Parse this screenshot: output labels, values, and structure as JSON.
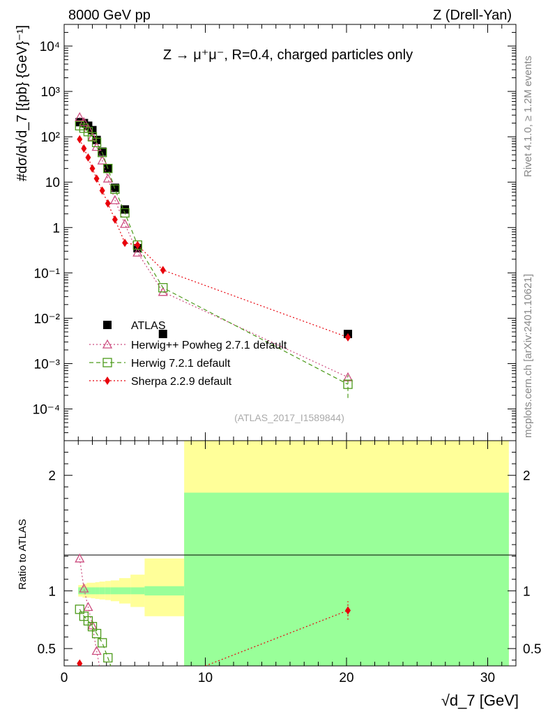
{
  "header": {
    "left": "8000 GeV pp",
    "right": "Z (Drell-Yan)"
  },
  "side": {
    "rivet": "Rivet 4.1.0, ≥ 1.2M events",
    "mcplots": "mcplots.cern.ch [arXiv:2401.10621]"
  },
  "chart_data": {
    "type": "scatter",
    "title": "Z → μ⁺μ⁻, R=0.4, charged particles only",
    "analysis_id": "(ATLAS_2017_I1589844)",
    "xlabel": "√d_7 [GeV]",
    "ylabel": "#dσ/d√d_7 [{pb} {GeV}⁻¹]",
    "xlim": [
      0,
      32
    ],
    "main": {
      "yscale": "log",
      "ylim": [
        2e-05,
        30000
      ],
      "ytick_values": [
        0.0001,
        0.001,
        0.01,
        0.1,
        1,
        10,
        100,
        1000,
        10000
      ],
      "ytick_labels": [
        "10⁻⁴",
        "10⁻³",
        "10⁻²",
        "10⁻¹",
        "1",
        "10",
        "10²",
        "10³",
        "10⁴"
      ],
      "xtick_values": [
        0,
        10,
        20,
        30
      ],
      "series": [
        {
          "name": "ATLAS",
          "color": "#000000",
          "marker": "filled-square",
          "x": [
            1.1,
            1.4,
            1.7,
            2.0,
            2.3,
            2.7,
            3.1,
            3.6,
            4.3,
            5.2,
            7.0,
            20.1
          ],
          "y": [
            210,
            200,
            175,
            140,
            85,
            47,
            20,
            7.5,
            2.5,
            0.35,
            0.0045,
            0.0045
          ]
        },
        {
          "name": "Herwig++ Powheg 2.7.1 default",
          "color": "#cc4c7f",
          "marker": "open-triangle",
          "line": "dotted",
          "x": [
            1.1,
            1.4,
            1.7,
            2.0,
            2.3,
            2.7,
            3.1,
            3.6,
            4.3,
            5.2,
            7.0,
            20.1
          ],
          "y": [
            270,
            210,
            150,
            100,
            60,
            30,
            12,
            4,
            1.2,
            0.28,
            0.038,
            0.0005
          ]
        },
        {
          "name": "Herwig 7.2.1 default",
          "color": "#4c9a1a",
          "marker": "open-square",
          "line": "dashed",
          "x": [
            1.1,
            1.4,
            1.7,
            2.0,
            2.3,
            2.7,
            3.1,
            3.6,
            4.3,
            5.2,
            7.0,
            20.1
          ],
          "y": [
            175,
            155,
            130,
            100,
            75,
            45,
            20,
            7,
            2.1,
            0.41,
            0.047,
            0.00035
          ]
        },
        {
          "name": "Sherpa 2.2.9 default",
          "color": "#e8000b",
          "marker": "filled-diamond",
          "line": "dotted",
          "x": [
            1.1,
            1.4,
            1.7,
            2.0,
            2.3,
            2.7,
            3.1,
            3.6,
            4.3,
            5.2,
            7.0,
            20.1
          ],
          "y": [
            88,
            55,
            35,
            20,
            12,
            6.5,
            3.4,
            1.5,
            0.46,
            0.41,
            0.115,
            0.0038
          ]
        }
      ]
    },
    "ratio": {
      "ylabel": "Ratio to ATLAS",
      "ylim": [
        0.35,
        2.3
      ],
      "ytick_values": [
        0.5,
        1,
        2
      ],
      "ytick_labels": [
        "0.5",
        "1",
        "2"
      ],
      "band_colors": {
        "stat": "#99ff99",
        "syst": "#ffff99"
      },
      "bands": [
        {
          "x0": 1.0,
          "x1": 1.3,
          "stat_lo": 0.97,
          "stat_hi": 1.03,
          "tot_lo": 0.95,
          "tot_hi": 1.05
        },
        {
          "x0": 1.3,
          "x1": 1.6,
          "stat_lo": 0.97,
          "stat_hi": 1.03,
          "tot_lo": 0.94,
          "tot_hi": 1.06
        },
        {
          "x0": 1.6,
          "x1": 1.9,
          "stat_lo": 0.97,
          "stat_hi": 1.03,
          "tot_lo": 0.94,
          "tot_hi": 1.07
        },
        {
          "x0": 1.9,
          "x1": 2.2,
          "stat_lo": 0.97,
          "stat_hi": 1.03,
          "tot_lo": 0.935,
          "tot_hi": 1.07
        },
        {
          "x0": 2.2,
          "x1": 2.5,
          "stat_lo": 0.97,
          "stat_hi": 1.03,
          "tot_lo": 0.93,
          "tot_hi": 1.075
        },
        {
          "x0": 2.5,
          "x1": 2.9,
          "stat_lo": 0.97,
          "stat_hi": 1.03,
          "tot_lo": 0.925,
          "tot_hi": 1.08
        },
        {
          "x0": 2.9,
          "x1": 3.3,
          "stat_lo": 0.97,
          "stat_hi": 1.03,
          "tot_lo": 0.92,
          "tot_hi": 1.085
        },
        {
          "x0": 3.3,
          "x1": 3.9,
          "stat_lo": 0.97,
          "stat_hi": 1.03,
          "tot_lo": 0.91,
          "tot_hi": 1.09
        },
        {
          "x0": 3.9,
          "x1": 4.7,
          "stat_lo": 0.97,
          "stat_hi": 1.03,
          "tot_lo": 0.89,
          "tot_hi": 1.11
        },
        {
          "x0": 4.7,
          "x1": 5.7,
          "stat_lo": 0.97,
          "stat_hi": 1.03,
          "tot_lo": 0.86,
          "tot_hi": 1.14
        },
        {
          "x0": 5.7,
          "x1": 8.5,
          "stat_lo": 0.96,
          "stat_hi": 1.04,
          "tot_lo": 0.78,
          "tot_hi": 1.28
        },
        {
          "x0": 8.5,
          "x1": 31.5,
          "stat_lo": 0.35,
          "stat_hi": 1.85,
          "tot_lo": 0.35,
          "tot_hi": 2.3
        }
      ],
      "series": [
        {
          "name": "Herwig++ Powheg 2.7.1 default",
          "color": "#cc4c7f",
          "marker": "open-triangle",
          "line": "dotted",
          "x": [
            1.1,
            1.4,
            1.7,
            2.0,
            2.3
          ],
          "y": [
            1.28,
            1.02,
            0.86,
            0.7,
            0.48
          ],
          "exit": [
            2.5,
            0.35
          ]
        },
        {
          "name": "Herwig 7.2.1 default",
          "color": "#4c9a1a",
          "marker": "open-square",
          "line": "dashed",
          "x": [
            1.1,
            1.4,
            1.7,
            2.0,
            2.3,
            2.7,
            3.1
          ],
          "y": [
            0.84,
            0.78,
            0.74,
            0.69,
            0.63,
            0.55,
            0.42
          ],
          "exit": [
            3.3,
            0.35
          ]
        },
        {
          "name": "Sherpa 2.2.9 default",
          "color": "#e8000b",
          "marker": "filled-diamond",
          "line": "dotted",
          "x": [
            1.1,
            20.1
          ],
          "y": [
            0.37,
            0.83
          ],
          "entry": [
            10.0,
            0.35
          ],
          "err": [
            0.08,
            0.08
          ]
        }
      ]
    }
  }
}
